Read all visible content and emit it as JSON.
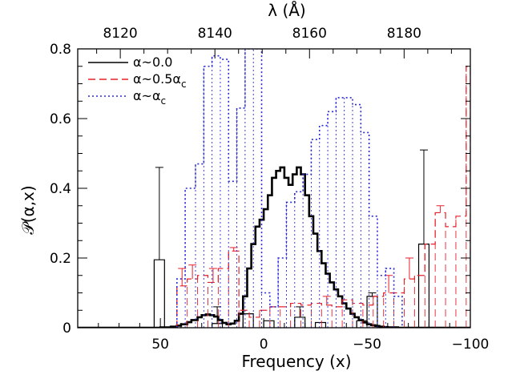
{
  "chart_data": {
    "type": "line",
    "xlabel": "Frequency (x)",
    "x2label": "λ (Å)",
    "ylabel": "𝒫(α,x)",
    "xlim": [
      90,
      -100
    ],
    "ylim": [
      0,
      0.8
    ],
    "x_ticks": [
      50,
      0,
      -50,
      -100
    ],
    "x_tick_labels": [
      "50",
      "0",
      "−50",
      "−100"
    ],
    "y_ticks": [
      0,
      0.2,
      0.4,
      0.6,
      0.8
    ],
    "y_tick_labels": [
      "0",
      "0.2",
      "0.4",
      "0.6",
      "0.8"
    ],
    "x2_ticks": [
      8120,
      8140,
      8160,
      8180
    ],
    "x2_tick_labels": [
      "8120",
      "8140",
      "8160",
      "8180"
    ],
    "x2_range": [
      8111,
      8194
    ],
    "grid": false,
    "legend_position": "top-left",
    "legend": [
      {
        "label": "α~0.0",
        "style": "solid",
        "color": "#000000"
      },
      {
        "label": "α~0.5α",
        "sub": "c",
        "style": "dashed",
        "color": "#e8202a"
      },
      {
        "label": "α~α",
        "sub": "c",
        "style": "dotted",
        "color": "#2a2ad8"
      }
    ],
    "series": [
      {
        "name": "α~0.0 (analytic)",
        "style": "thick-step",
        "color": "#000000",
        "x": [
          90,
          60,
          50,
          45,
          42,
          40,
          37,
          35,
          32,
          30,
          28,
          26,
          24,
          22,
          20,
          18,
          16,
          14,
          12,
          10,
          8,
          6,
          4,
          2,
          0,
          -2,
          -4,
          -6,
          -8,
          -10,
          -12,
          -14,
          -16,
          -18,
          -20,
          -22,
          -24,
          -26,
          -28,
          -30,
          -32,
          -34,
          -36,
          -38,
          -40,
          -42,
          -44,
          -46,
          -48,
          -50,
          -52,
          -54,
          -56,
          -58,
          -60,
          -65,
          -70,
          -80,
          -100
        ],
        "y": [
          0,
          0,
          0.001,
          0.003,
          0.006,
          0.01,
          0.016,
          0.022,
          0.03,
          0.036,
          0.038,
          0.036,
          0.032,
          0.022,
          0.014,
          0.01,
          0.012,
          0.02,
          0.04,
          0.09,
          0.17,
          0.24,
          0.29,
          0.31,
          0.34,
          0.38,
          0.43,
          0.45,
          0.46,
          0.43,
          0.41,
          0.44,
          0.46,
          0.44,
          0.38,
          0.32,
          0.27,
          0.22,
          0.185,
          0.155,
          0.13,
          0.11,
          0.09,
          0.07,
          0.055,
          0.04,
          0.03,
          0.022,
          0.015,
          0.01,
          0.007,
          0.005,
          0.003,
          0.002,
          0.001,
          0,
          0,
          0,
          0
        ]
      },
      {
        "name": "α~0.0 (simulated)",
        "style": "thin-step",
        "color": "#000000",
        "bins": [
          [
            53,
            48,
            0.195
          ],
          [
            25,
            20,
            0.012
          ],
          [
            10,
            5,
            0.04
          ],
          [
            0,
            -5,
            0.02
          ],
          [
            -15,
            -20,
            0.03
          ],
          [
            -25,
            -30,
            0.015
          ],
          [
            -45,
            -50,
            0.02
          ],
          [
            -50,
            -55,
            0.09
          ],
          [
            -75,
            -80,
            0.24
          ]
        ],
        "errors": [
          [
            50.5,
            0.195,
            0.46
          ],
          [
            22.5,
            0.012,
            0.06
          ],
          [
            -17.5,
            0.03,
            0.06
          ],
          [
            -52.5,
            0.09,
            0.1
          ],
          [
            -77.5,
            0.24,
            0.51
          ]
        ]
      },
      {
        "name": "α~0.5α_c",
        "style": "dashed-step",
        "color": "#e8202a",
        "bins": [
          [
            42,
            37,
            0.12
          ],
          [
            37,
            32,
            0.14
          ],
          [
            32,
            27,
            0.15
          ],
          [
            27,
            22,
            0.13
          ],
          [
            22,
            17,
            0.17
          ],
          [
            17,
            12,
            0.22
          ],
          [
            12,
            7,
            0.05
          ],
          [
            7,
            2,
            0.03
          ],
          [
            2,
            -3,
            0.05
          ],
          [
            -3,
            -8,
            0.06
          ],
          [
            -8,
            -13,
            0.06
          ],
          [
            -13,
            -18,
            0.07
          ],
          [
            -18,
            -23,
            0.065
          ],
          [
            -23,
            -28,
            0.07
          ],
          [
            -28,
            -33,
            0.065
          ],
          [
            -33,
            -38,
            0.06
          ],
          [
            -38,
            -43,
            0.08
          ],
          [
            -43,
            -48,
            0.07
          ],
          [
            -48,
            -53,
            0.065
          ],
          [
            -53,
            -58,
            0.09
          ],
          [
            -58,
            -63,
            0.1
          ],
          [
            -63,
            -68,
            0.1
          ],
          [
            -68,
            -73,
            0.14
          ],
          [
            -73,
            -78,
            0.15
          ],
          [
            -78,
            -83,
            0.24
          ],
          [
            -83,
            -88,
            0.33
          ],
          [
            -88,
            -93,
            0.29
          ],
          [
            -93,
            -98,
            0.32
          ],
          [
            -98,
            -100,
            0.75
          ]
        ],
        "errors": [
          [
            39.5,
            0.12,
            0.17
          ],
          [
            34.5,
            0.14,
            0.18
          ],
          [
            24.5,
            0.13,
            0.17
          ],
          [
            14.5,
            0.22,
            0.23
          ],
          [
            -30.5,
            0.065,
            0.09
          ],
          [
            -60.5,
            0.1,
            0.15
          ],
          [
            -70.5,
            0.14,
            0.2
          ],
          [
            -85.5,
            0.33,
            0.35
          ]
        ]
      },
      {
        "name": "α~α_c",
        "style": "dotted-step",
        "color": "#2a2ad8",
        "bins": [
          [
            42,
            38,
            0.14
          ],
          [
            38,
            33,
            0.4
          ],
          [
            33,
            29,
            0.47
          ],
          [
            29,
            25,
            0.75
          ],
          [
            25,
            21,
            0.78
          ],
          [
            21,
            17,
            0.77
          ],
          [
            17,
            13,
            0.42
          ],
          [
            13,
            9,
            0.63
          ],
          [
            9,
            5,
            0.8
          ],
          [
            5,
            1,
            0.8
          ],
          [
            1,
            -3,
            0.1
          ],
          [
            -3,
            -7,
            0.06
          ],
          [
            -7,
            -11,
            0.2
          ],
          [
            -11,
            -15,
            0.36
          ],
          [
            -15,
            -19,
            0.39
          ],
          [
            -19,
            -23,
            0.44
          ],
          [
            -23,
            -27,
            0.54
          ],
          [
            -27,
            -31,
            0.58
          ],
          [
            -31,
            -35,
            0.62
          ],
          [
            -35,
            -39,
            0.66
          ],
          [
            -39,
            -43,
            0.66
          ],
          [
            -43,
            -47,
            0.64
          ],
          [
            -47,
            -51,
            0.56
          ],
          [
            -51,
            -55,
            0.32
          ],
          [
            -55,
            -59,
            0.15
          ],
          [
            -59,
            -63,
            0.17
          ],
          [
            -63,
            -67,
            0.09
          ]
        ]
      }
    ]
  }
}
